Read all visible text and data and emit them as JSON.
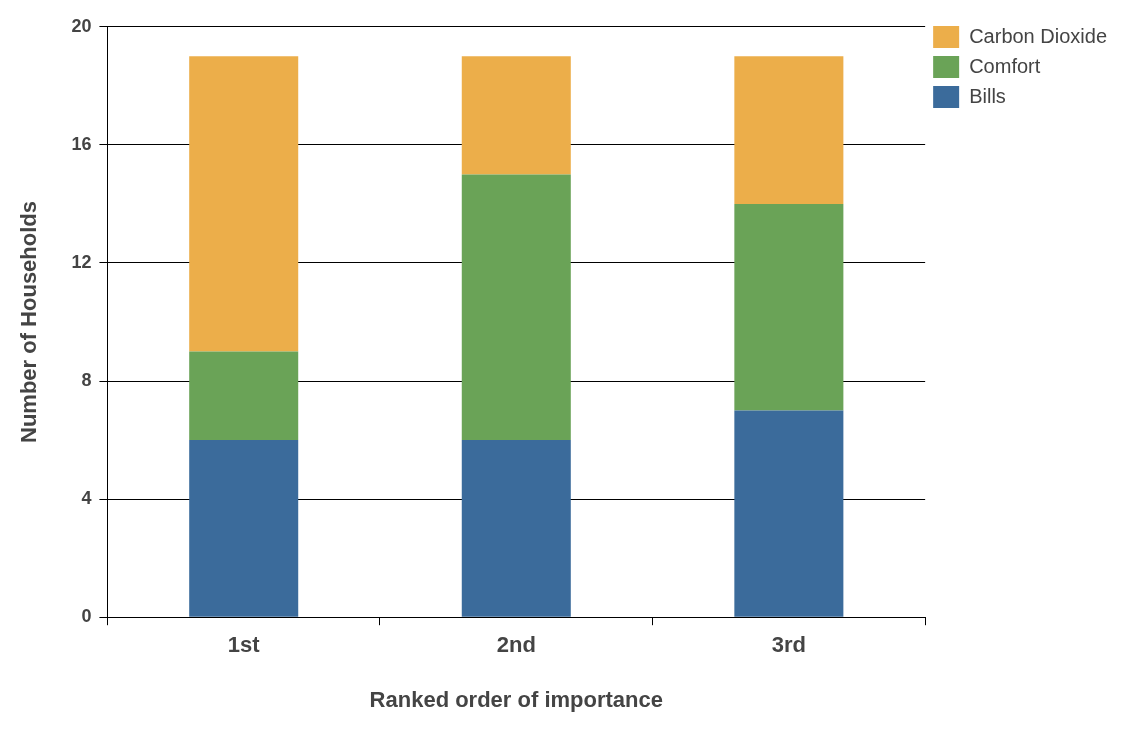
{
  "chart_data": {
    "type": "bar",
    "stacked": true,
    "xlabel": "Ranked order of importance",
    "ylabel": "Number of Households",
    "categories": [
      "1st",
      "2nd",
      "3rd"
    ],
    "series": [
      {
        "name": "Bills",
        "color": "#3b6b9b",
        "values": [
          6,
          6,
          7
        ]
      },
      {
        "name": "Comfort",
        "color": "#6aa357",
        "values": [
          3,
          9,
          7
        ]
      },
      {
        "name": "Carbon Dioxide",
        "color": "#ecae4a",
        "values": [
          10,
          4,
          5
        ]
      }
    ],
    "ylim": [
      0,
      20
    ],
    "yticks": [
      0,
      4,
      8,
      12,
      16,
      20
    ],
    "grid": "y",
    "legend": "top right"
  }
}
